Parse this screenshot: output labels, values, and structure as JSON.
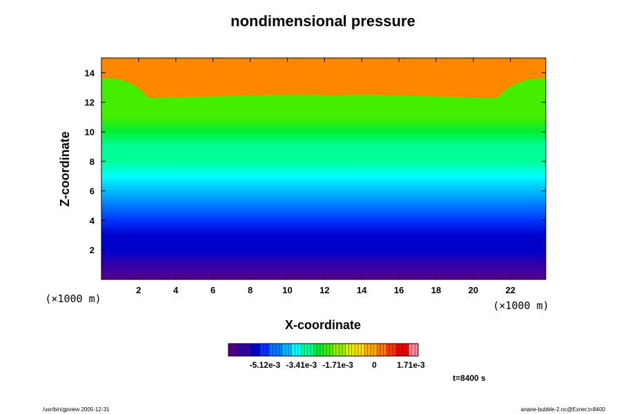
{
  "chart_data": {
    "type": "heatmap",
    "title": "nondimensional pressure",
    "xlabel": "X-coordinate",
    "ylabel": "Z-coordinate",
    "x_unit": "(×1000 m)",
    "y_unit": "(×1000 m)",
    "xlim": [
      0,
      23.9
    ],
    "ylim": [
      0,
      15
    ],
    "x_ticks": [
      "2",
      "4",
      "6",
      "8",
      "10",
      "12",
      "14",
      "16",
      "18",
      "20",
      "22"
    ],
    "y_ticks": [
      "2",
      "4",
      "6",
      "8",
      "10",
      "12",
      "14"
    ],
    "x_tick_values": [
      2,
      4,
      6,
      8,
      10,
      12,
      14,
      16,
      18,
      20,
      22
    ],
    "y_tick_values": [
      2,
      4,
      6,
      8,
      10,
      12,
      14
    ],
    "colorbar": {
      "min": -0.00683,
      "max": 0.00205,
      "tick_labels": [
        "-5.12e-3",
        "-3.41e-3",
        "-1.71e-3",
        "0",
        "1.71e-3"
      ],
      "tick_values": [
        -0.00512,
        -0.00341,
        -0.00171,
        0,
        0.00171
      ],
      "colors": [
        "#550088",
        "#3300aa",
        "#0000cc",
        "#0033ff",
        "#0077ff",
        "#00bbff",
        "#00ffff",
        "#00ff99",
        "#00ee33",
        "#44ee00",
        "#99ee00",
        "#ddee00",
        "#ffdd00",
        "#ffaa00",
        "#ff7700",
        "#ff3300",
        "#ee0000",
        "#ff8899"
      ]
    },
    "vertical_profile": {
      "z": [
        0,
        1,
        2,
        3,
        4,
        5,
        6,
        7,
        8,
        9,
        10,
        11,
        12,
        13,
        15
      ],
      "value": [
        -0.0066,
        -0.0062,
        -0.0058,
        -0.0054,
        -0.0049,
        -0.0045,
        -0.0041,
        -0.0037,
        -0.0033,
        -0.0029,
        -0.0026,
        -0.0023,
        -0.00215,
        -0.00205,
        -0.00205
      ]
    },
    "time_label": "t=8400 s"
  },
  "footer": {
    "left": "/usr/bin/gpview 2005-12-31",
    "right": "anane-bubble-2.nc@Exner,t=8400"
  }
}
